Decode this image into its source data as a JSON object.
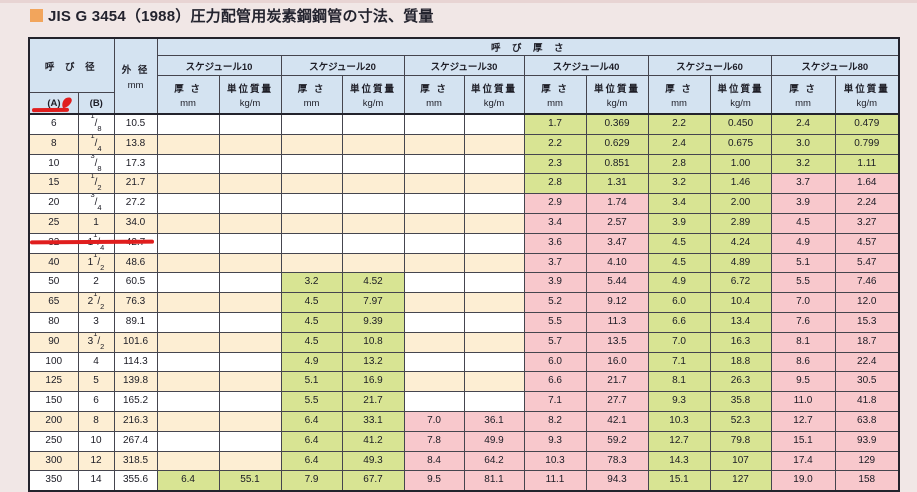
{
  "page": {
    "background": "#f1e7e6",
    "top_strip_color": "#e8d4d3"
  },
  "title": {
    "text": "JIS G 3454（1988）圧力配管用炭素鋼鋼管の寸法、質量",
    "bullet_color": "#f2a55c"
  },
  "table": {
    "header": {
      "nominal_dia": "呼 び 径",
      "col_a": "(A)",
      "col_b": "(B)",
      "outer_dia": "外 径",
      "outer_dia_unit": "mm",
      "nominal_thickness": "呼　び　厚　さ",
      "schedules": [
        "スケジュール10",
        "スケジュール20",
        "スケジュール30",
        "スケジュール40",
        "スケジュール60",
        "スケジュール80"
      ],
      "thickness_label": "厚 さ",
      "thickness_unit": "mm",
      "mass_label": "単位質量",
      "mass_unit": "kg/m"
    },
    "colors": {
      "green": "#d8e493",
      "pink": "#f8c8cc",
      "cream": "#fdeed3",
      "white": "#ffffff",
      "header_blue": "#d4e3f1"
    },
    "rows": [
      {
        "a": "6",
        "b": "1/8",
        "od": "10.5",
        "sch": [
          null,
          null,
          null,
          {
            "t": "1.7",
            "m": "0.369",
            "c": "g"
          },
          {
            "t": "2.2",
            "m": "0.450",
            "c": "g"
          },
          {
            "t": "2.4",
            "m": "0.479",
            "c": "g"
          }
        ]
      },
      {
        "a": "8",
        "b": "1/4",
        "od": "13.8",
        "sch": [
          null,
          null,
          null,
          {
            "t": "2.2",
            "m": "0.629",
            "c": "g"
          },
          {
            "t": "2.4",
            "m": "0.675",
            "c": "g"
          },
          {
            "t": "3.0",
            "m": "0.799",
            "c": "g"
          }
        ]
      },
      {
        "a": "10",
        "b": "3/8",
        "od": "17.3",
        "sch": [
          null,
          null,
          null,
          {
            "t": "2.3",
            "m": "0.851",
            "c": "g"
          },
          {
            "t": "2.8",
            "m": "1.00",
            "c": "g"
          },
          {
            "t": "3.2",
            "m": "1.11",
            "c": "g"
          }
        ]
      },
      {
        "a": "15",
        "b": "1/2",
        "od": "21.7",
        "sch": [
          null,
          null,
          null,
          {
            "t": "2.8",
            "m": "1.31",
            "c": "g"
          },
          {
            "t": "3.2",
            "m": "1.46",
            "c": "g"
          },
          {
            "t": "3.7",
            "m": "1.64",
            "c": "p"
          }
        ]
      },
      {
        "a": "20",
        "b": "3/4",
        "od": "27.2",
        "sch": [
          null,
          null,
          null,
          {
            "t": "2.9",
            "m": "1.74",
            "c": "p"
          },
          {
            "t": "3.4",
            "m": "2.00",
            "c": "g"
          },
          {
            "t": "3.9",
            "m": "2.24",
            "c": "p"
          }
        ]
      },
      {
        "a": "25",
        "b": "1",
        "od": "34.0",
        "sch": [
          null,
          null,
          null,
          {
            "t": "3.4",
            "m": "2.57",
            "c": "p"
          },
          {
            "t": "3.9",
            "m": "2.89",
            "c": "g"
          },
          {
            "t": "4.5",
            "m": "3.27",
            "c": "p"
          }
        ]
      },
      {
        "a": "32",
        "b": "1 1/4",
        "od": "42.7",
        "annotated": true,
        "sch": [
          null,
          null,
          null,
          {
            "t": "3.6",
            "m": "3.47",
            "c": "p"
          },
          {
            "t": "4.5",
            "m": "4.24",
            "c": "g"
          },
          {
            "t": "4.9",
            "m": "4.57",
            "c": "p"
          }
        ]
      },
      {
        "a": "40",
        "b": "1 1/2",
        "od": "48.6",
        "sch": [
          null,
          null,
          null,
          {
            "t": "3.7",
            "m": "4.10",
            "c": "p"
          },
          {
            "t": "4.5",
            "m": "4.89",
            "c": "g"
          },
          {
            "t": "5.1",
            "m": "5.47",
            "c": "p"
          }
        ]
      },
      {
        "a": "50",
        "b": "2",
        "od": "60.5",
        "sch": [
          null,
          {
            "t": "3.2",
            "m": "4.52",
            "c": "g"
          },
          null,
          {
            "t": "3.9",
            "m": "5.44",
            "c": "p"
          },
          {
            "t": "4.9",
            "m": "6.72",
            "c": "g"
          },
          {
            "t": "5.5",
            "m": "7.46",
            "c": "p"
          }
        ]
      },
      {
        "a": "65",
        "b": "2 1/2",
        "od": "76.3",
        "sch": [
          null,
          {
            "t": "4.5",
            "m": "7.97",
            "c": "g"
          },
          null,
          {
            "t": "5.2",
            "m": "9.12",
            "c": "p"
          },
          {
            "t": "6.0",
            "m": "10.4",
            "c": "g"
          },
          {
            "t": "7.0",
            "m": "12.0",
            "c": "p"
          }
        ]
      },
      {
        "a": "80",
        "b": "3",
        "od": "89.1",
        "sch": [
          null,
          {
            "t": "4.5",
            "m": "9.39",
            "c": "g"
          },
          null,
          {
            "t": "5.5",
            "m": "11.3",
            "c": "p"
          },
          {
            "t": "6.6",
            "m": "13.4",
            "c": "g"
          },
          {
            "t": "7.6",
            "m": "15.3",
            "c": "p"
          }
        ]
      },
      {
        "a": "90",
        "b": "3 1/2",
        "od": "101.6",
        "sch": [
          null,
          {
            "t": "4.5",
            "m": "10.8",
            "c": "g"
          },
          null,
          {
            "t": "5.7",
            "m": "13.5",
            "c": "p"
          },
          {
            "t": "7.0",
            "m": "16.3",
            "c": "g"
          },
          {
            "t": "8.1",
            "m": "18.7",
            "c": "p"
          }
        ]
      },
      {
        "a": "100",
        "b": "4",
        "od": "114.3",
        "sch": [
          null,
          {
            "t": "4.9",
            "m": "13.2",
            "c": "g"
          },
          null,
          {
            "t": "6.0",
            "m": "16.0",
            "c": "p"
          },
          {
            "t": "7.1",
            "m": "18.8",
            "c": "g"
          },
          {
            "t": "8.6",
            "m": "22.4",
            "c": "p"
          }
        ]
      },
      {
        "a": "125",
        "b": "5",
        "od": "139.8",
        "sch": [
          null,
          {
            "t": "5.1",
            "m": "16.9",
            "c": "g"
          },
          null,
          {
            "t": "6.6",
            "m": "21.7",
            "c": "p"
          },
          {
            "t": "8.1",
            "m": "26.3",
            "c": "g"
          },
          {
            "t": "9.5",
            "m": "30.5",
            "c": "p"
          }
        ]
      },
      {
        "a": "150",
        "b": "6",
        "od": "165.2",
        "sch": [
          null,
          {
            "t": "5.5",
            "m": "21.7",
            "c": "g"
          },
          null,
          {
            "t": "7.1",
            "m": "27.7",
            "c": "p"
          },
          {
            "t": "9.3",
            "m": "35.8",
            "c": "g"
          },
          {
            "t": "11.0",
            "m": "41.8",
            "c": "p"
          }
        ]
      },
      {
        "a": "200",
        "b": "8",
        "od": "216.3",
        "sch": [
          null,
          {
            "t": "6.4",
            "m": "33.1",
            "c": "g"
          },
          {
            "t": "7.0",
            "m": "36.1",
            "c": "p"
          },
          {
            "t": "8.2",
            "m": "42.1",
            "c": "p"
          },
          {
            "t": "10.3",
            "m": "52.3",
            "c": "g"
          },
          {
            "t": "12.7",
            "m": "63.8",
            "c": "p"
          }
        ]
      },
      {
        "a": "250",
        "b": "10",
        "od": "267.4",
        "sch": [
          null,
          {
            "t": "6.4",
            "m": "41.2",
            "c": "g"
          },
          {
            "t": "7.8",
            "m": "49.9",
            "c": "p"
          },
          {
            "t": "9.3",
            "m": "59.2",
            "c": "p"
          },
          {
            "t": "12.7",
            "m": "79.8",
            "c": "g"
          },
          {
            "t": "15.1",
            "m": "93.9",
            "c": "p"
          }
        ]
      },
      {
        "a": "300",
        "b": "12",
        "od": "318.5",
        "sch": [
          null,
          {
            "t": "6.4",
            "m": "49.3",
            "c": "g"
          },
          {
            "t": "8.4",
            "m": "64.2",
            "c": "p"
          },
          {
            "t": "10.3",
            "m": "78.3",
            "c": "p"
          },
          {
            "t": "14.3",
            "m": "107",
            "c": "g"
          },
          {
            "t": "17.4",
            "m": "129",
            "c": "p"
          }
        ]
      },
      {
        "a": "350",
        "b": "14",
        "od": "355.6",
        "sch": [
          {
            "t": "6.4",
            "m": "55.1",
            "c": "g"
          },
          {
            "t": "7.9",
            "m": "67.7",
            "c": "g"
          },
          {
            "t": "9.5",
            "m": "81.1",
            "c": "p"
          },
          {
            "t": "11.1",
            "m": "94.3",
            "c": "p"
          },
          {
            "t": "15.1",
            "m": "127",
            "c": "g"
          },
          {
            "t": "19.0",
            "m": "158",
            "c": "p"
          }
        ]
      }
    ]
  },
  "annotations": {
    "color": "#e01e1e",
    "marks": [
      "red-underline-col-a",
      "red-pen-mark",
      "red-underline-row-32"
    ]
  }
}
